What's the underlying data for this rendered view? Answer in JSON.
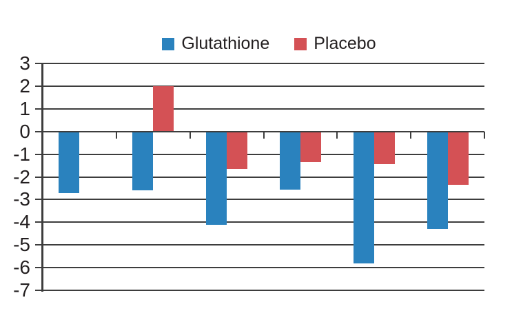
{
  "chart_data": {
    "type": "bar",
    "title": "",
    "categories": [
      "",
      "",
      "",
      "",
      "",
      ""
    ],
    "series": [
      {
        "name": "Glutathione",
        "color": "#2A82BE",
        "values": [
          -2.7,
          -2.6,
          -4.1,
          -2.55,
          -5.8,
          -4.3
        ]
      },
      {
        "name": "Placebo",
        "color": "#D45155",
        "values": [
          null,
          2,
          -1.65,
          -1.35,
          -1.45,
          -2.35
        ]
      }
    ],
    "ylim": [
      -7,
      3
    ],
    "yticks": [
      3,
      2,
      1,
      0,
      -1,
      -2,
      -3,
      -4,
      -5,
      -6,
      -7
    ],
    "xlabel": "",
    "ylabel": "",
    "grid": true,
    "legend_position": "top-center",
    "gridline_color": "#3D3D3D",
    "text_color": "#231F20",
    "background_color": "#FFFFFF"
  }
}
